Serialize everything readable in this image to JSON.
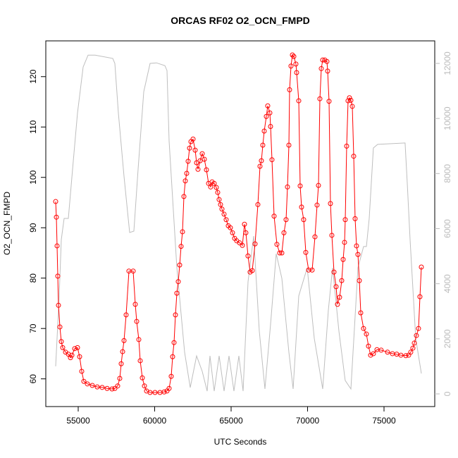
{
  "chart_data": {
    "type": "line",
    "title": "ORCAS RF02 O2_OCN_FMPD",
    "xlabel": "UTC Seconds",
    "ylabel": "O2_OCN_FMPD",
    "xlim": [
      52880,
      78318
    ],
    "ylim": [
      54.5,
      127.1
    ],
    "y2lim": [
      -460,
      12818
    ],
    "xticks": [
      55000,
      60000,
      65000,
      70000,
      75000
    ],
    "yticks": [
      60,
      70,
      80,
      90,
      100,
      110,
      120
    ],
    "y2ticks": [
      0,
      2000,
      4000,
      6000,
      8000,
      10000,
      12000
    ],
    "series": [
      {
        "color": "#bebebe",
        "axis": "y2",
        "markers": false,
        "x": [
          53525,
          53755,
          53894,
          54078,
          54355,
          54631,
          54954,
          55322,
          55645,
          56106,
          57258,
          57396,
          57626,
          57995,
          58225,
          58363,
          58640,
          58916,
          59285,
          59700,
          60115,
          60668,
          60806,
          60944,
          61451,
          61958,
          62326,
          62741,
          63110,
          63432,
          63616,
          63893,
          64215,
          64538,
          64860,
          65183,
          65505,
          65782,
          66105,
          66473,
          66842,
          67210,
          67579,
          67948,
          68317,
          68777,
          69054,
          69423,
          69976,
          70437,
          70990,
          71358,
          71635,
          72050,
          72463,
          72832,
          73293,
          73662,
          73846,
          74030,
          74306,
          74583,
          76380,
          76519,
          76703,
          77072,
          77441
        ],
        "values": [
          1000,
          3560,
          5600,
          6370,
          6370,
          8160,
          10200,
          11870,
          12300,
          12300,
          12180,
          12000,
          10200,
          7900,
          6620,
          5860,
          5910,
          8160,
          10970,
          12000,
          12020,
          11920,
          11740,
          9180,
          4580,
          1510,
          230,
          1380,
          820,
          100,
          1380,
          100,
          1380,
          100,
          1380,
          100,
          1380,
          100,
          4070,
          5730,
          2280,
          180,
          2530,
          5090,
          4200,
          1510,
          180,
          3560,
          4580,
          2020,
          180,
          3040,
          4580,
          2280,
          490,
          180,
          4580,
          5350,
          5350,
          6370,
          8930,
          9060,
          9110,
          7650,
          5600,
          2020,
          740
        ]
      },
      {
        "color": "#ff0000",
        "markers": true,
        "x": [
          53525,
          53571,
          53617,
          53663,
          53709,
          53802,
          53894,
          53986,
          54170,
          54355,
          54493,
          54585,
          54769,
          54954,
          55092,
          55230,
          55368,
          55599,
          55921,
          56244,
          56566,
          56889,
          57212,
          57396,
          57580,
          57718,
          57811,
          57903,
          57995,
          58133,
          58317,
          58594,
          58732,
          58824,
          58963,
          59055,
          59193,
          59331,
          59469,
          59700,
          60022,
          60345,
          60621,
          60806,
          60944,
          61082,
          61174,
          61267,
          61359,
          61451,
          61543,
          61635,
          61728,
          61820,
          61912,
          62004,
          62096,
          62188,
          62281,
          62373,
          62511,
          62649,
          62741,
          62833,
          62972,
          63110,
          63248,
          63386,
          63524,
          63662,
          63755,
          63893,
          64031,
          64123,
          64215,
          64308,
          64400,
          64538,
          64676,
          64814,
          64952,
          65091,
          65229,
          65367,
          65552,
          65736,
          65874,
          65966,
          66104,
          66243,
          66381,
          66565,
          66750,
          66888,
          66980,
          67072,
          67165,
          67303,
          67395,
          67533,
          67579,
          67672,
          67810,
          67994,
          68179,
          68317,
          68455,
          68593,
          68685,
          68778,
          68824,
          68916,
          69008,
          69100,
          69238,
          69284,
          69423,
          69515,
          69607,
          69745,
          69884,
          70068,
          70298,
          70483,
          70621,
          70713,
          70805,
          70897,
          70989,
          71128,
          71266,
          71312,
          71404,
          71496,
          71588,
          71727,
          71865,
          71957,
          72095,
          72234,
          72326,
          72418,
          72464,
          72556,
          72648,
          72740,
          72833,
          72925,
          73017,
          73109,
          73201,
          73293,
          73386,
          73478,
          73662,
          73846,
          73985,
          74123,
          74307,
          74538,
          74814,
          75229,
          75551,
          75828,
          76104,
          76427,
          76611,
          76749,
          76888,
          76980,
          77118,
          77256,
          77348,
          77441
        ],
        "values": [
          95.2,
          92.1,
          86.4,
          80.4,
          74.6,
          70.3,
          67.4,
          66.2,
          65.3,
          64.9,
          64.2,
          64.7,
          66.0,
          66.2,
          64.4,
          61.5,
          59.5,
          59.0,
          58.7,
          58.4,
          58.3,
          58.1,
          58.0,
          58.1,
          58.6,
          60.1,
          63.0,
          65.4,
          67.6,
          72.7,
          81.4,
          81.4,
          74.8,
          71.4,
          67.8,
          63.6,
          60.2,
          58.6,
          57.6,
          57.3,
          57.3,
          57.3,
          57.4,
          57.6,
          58.1,
          60.5,
          64.4,
          67.2,
          72.7,
          77.0,
          79.3,
          82.6,
          86.3,
          89.2,
          96.2,
          99.3,
          100.8,
          103.2,
          105.8,
          107.1,
          107.6,
          105.4,
          102.9,
          101.6,
          103.3,
          104.7,
          103.6,
          101.5,
          98.8,
          98.1,
          99.1,
          98.8,
          98.0,
          97.0,
          95.6,
          94.6,
          93.7,
          92.7,
          91.6,
          90.4,
          90.0,
          89.0,
          87.9,
          87.4,
          87.0,
          86.5,
          90.7,
          89.0,
          84.4,
          81.2,
          81.5,
          86.8,
          94.6,
          102.2,
          103.3,
          106.4,
          109.2,
          112.1,
          114.2,
          112.8,
          110.1,
          103.5,
          92.3,
          86.7,
          85.0,
          85.0,
          89.0,
          91.6,
          98.1,
          106.4,
          117.4,
          122.1,
          124.3,
          124.0,
          122.5,
          120.8,
          115.2,
          98.3,
          94.1,
          91.6,
          85.1,
          81.6,
          81.6,
          88.2,
          94.5,
          98.4,
          115.6,
          121.6,
          123.3,
          123.3,
          123.0,
          121.1,
          115.1,
          94.8,
          88.5,
          81.2,
          78.3,
          74.8,
          76.2,
          79.5,
          83.7,
          87.1,
          91.6,
          106.2,
          115.2,
          115.8,
          115.3,
          114.1,
          104.2,
          91.8,
          86.4,
          84.7,
          79.5,
          73.1,
          70.0,
          68.9,
          66.5,
          64.7,
          65.0,
          65.8,
          65.7,
          65.3,
          65.0,
          64.9,
          64.7,
          64.6,
          64.7,
          65.3,
          66.1,
          67.1,
          68.6,
          70.0,
          76.3,
          82.2
        ]
      }
    ]
  }
}
